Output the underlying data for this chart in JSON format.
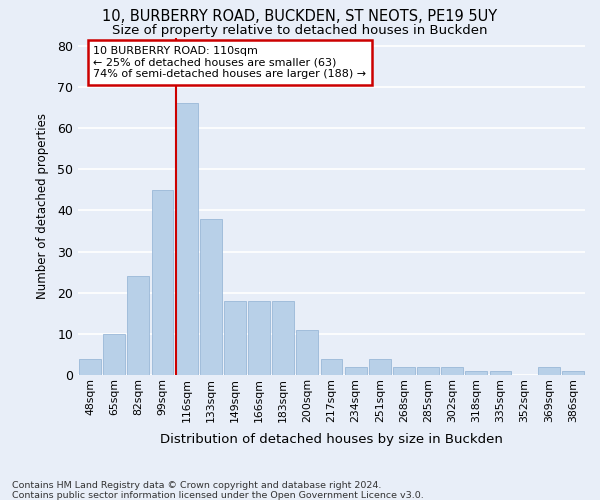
{
  "title1": "10, BURBERRY ROAD, BUCKDEN, ST NEOTS, PE19 5UY",
  "title2": "Size of property relative to detached houses in Buckden",
  "xlabel": "Distribution of detached houses by size in Buckden",
  "ylabel": "Number of detached properties",
  "categories": [
    "48sqm",
    "65sqm",
    "82sqm",
    "99sqm",
    "116sqm",
    "133sqm",
    "149sqm",
    "166sqm",
    "183sqm",
    "200sqm",
    "217sqm",
    "234sqm",
    "251sqm",
    "268sqm",
    "285sqm",
    "302sqm",
    "318sqm",
    "335sqm",
    "352sqm",
    "369sqm",
    "386sqm"
  ],
  "values": [
    4,
    10,
    24,
    45,
    66,
    38,
    18,
    18,
    18,
    11,
    4,
    2,
    4,
    2,
    2,
    2,
    1,
    1,
    0,
    2,
    1
  ],
  "bar_color": "#b8d0e8",
  "bar_edge_color": "#9ab8d8",
  "annotation_title": "10 BURBERRY ROAD: 110sqm",
  "annotation_line1": "← 25% of detached houses are smaller (63)",
  "annotation_line2": "74% of semi-detached houses are larger (188) →",
  "annotation_box_color": "#ffffff",
  "annotation_border_color": "#cc0000",
  "vline_color": "#cc0000",
  "ylim": [
    0,
    82
  ],
  "yticks": [
    0,
    10,
    20,
    30,
    40,
    50,
    60,
    70,
    80
  ],
  "footer1": "Contains HM Land Registry data © Crown copyright and database right 2024.",
  "footer2": "Contains public sector information licensed under the Open Government Licence v3.0.",
  "bg_color": "#e8eef8",
  "grid_color": "#ffffff"
}
